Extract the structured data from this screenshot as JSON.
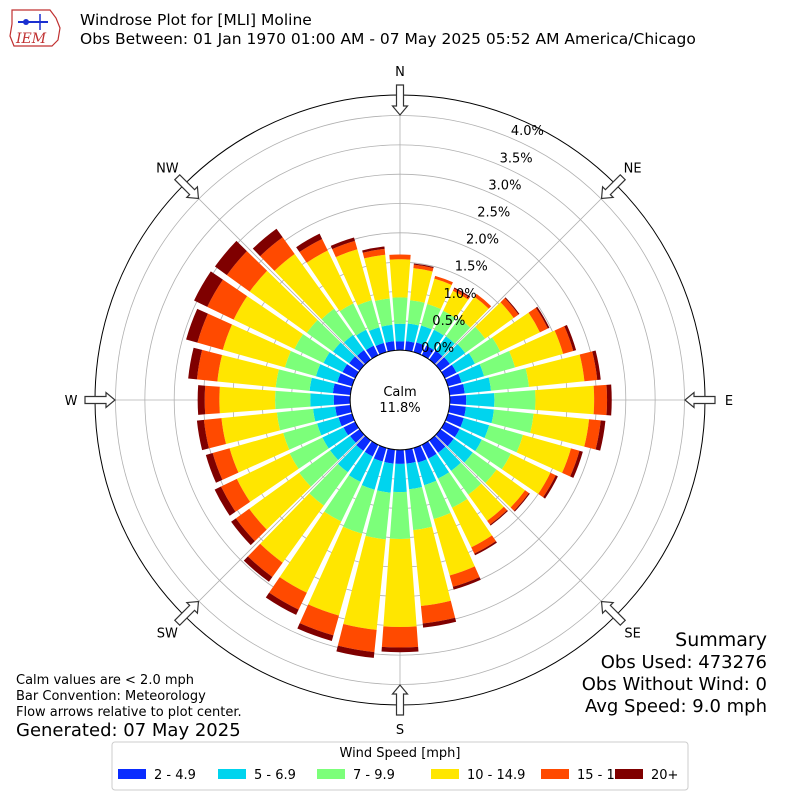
{
  "header": {
    "title": "Windrose Plot for [MLI] Moline",
    "subtitle": "Obs Between: 01 Jan 1970 01:00 AM - 07 May 2025 05:52 AM America/Chicago",
    "logo_text": "IEM"
  },
  "calm": {
    "label": "Calm",
    "value": "11.8%"
  },
  "summary": {
    "title": "Summary",
    "obs_used": "Obs Used: 473276",
    "obs_without_wind": "Obs Without Wind: 0",
    "avg_speed": "Avg Speed: 9.0 mph"
  },
  "notes": {
    "calm_note": "Calm values are < 2.0 mph",
    "bar_convention": "Bar Convention: Meteorology",
    "flow_note": "Flow arrows relative to plot center.",
    "generated": "Generated: 07 May 2025"
  },
  "chart_data": {
    "type": "windrose",
    "title": "Windrose Plot for [MLI] Moline",
    "compass_labels": [
      "N",
      "NE",
      "E",
      "SE",
      "S",
      "SW",
      "W",
      "NW"
    ],
    "radial_ticks": [
      "0.0%",
      "0.5%",
      "1.0%",
      "1.5%",
      "2.0%",
      "2.5%",
      "3.0%",
      "3.5%",
      "4.0%"
    ],
    "rmax_percent": 4.35,
    "inner_hole_percent": 0.85,
    "directions_deg": [
      0,
      10,
      20,
      30,
      40,
      50,
      60,
      70,
      80,
      90,
      100,
      110,
      120,
      130,
      140,
      150,
      160,
      170,
      180,
      190,
      200,
      210,
      220,
      230,
      240,
      250,
      260,
      270,
      280,
      290,
      300,
      310,
      320,
      330,
      340,
      350
    ],
    "legend_title": "Wind Speed [mph]",
    "colors": [
      "#0a2cff",
      "#00d4ee",
      "#7cff7a",
      "#ffe600",
      "#ff4a00",
      "#7f0000"
    ],
    "series": [
      {
        "name": "2 - 4.9",
        "color": "#0a2cff",
        "values": [
          0.15,
          0.16,
          0.17,
          0.18,
          0.19,
          0.2,
          0.22,
          0.24,
          0.26,
          0.28,
          0.28,
          0.28,
          0.28,
          0.28,
          0.26,
          0.26,
          0.26,
          0.24,
          0.24,
          0.24,
          0.24,
          0.22,
          0.22,
          0.2,
          0.22,
          0.24,
          0.26,
          0.28,
          0.3,
          0.26,
          0.24,
          0.22,
          0.2,
          0.18,
          0.16,
          0.16
        ]
      },
      {
        "name": "5 - 6.9",
        "color": "#00d4ee",
        "values": [
          0.3,
          0.3,
          0.3,
          0.3,
          0.3,
          0.32,
          0.35,
          0.4,
          0.45,
          0.48,
          0.48,
          0.45,
          0.42,
          0.4,
          0.38,
          0.38,
          0.4,
          0.44,
          0.48,
          0.5,
          0.5,
          0.48,
          0.45,
          0.42,
          0.4,
          0.38,
          0.38,
          0.4,
          0.4,
          0.38,
          0.36,
          0.34,
          0.32,
          0.3,
          0.28,
          0.28
        ]
      },
      {
        "name": "7 - 9.9",
        "color": "#7cff7a",
        "values": [
          0.45,
          0.4,
          0.38,
          0.36,
          0.38,
          0.42,
          0.48,
          0.55,
          0.65,
          0.7,
          0.68,
          0.6,
          0.55,
          0.5,
          0.5,
          0.55,
          0.6,
          0.7,
          0.8,
          0.8,
          0.78,
          0.75,
          0.7,
          0.65,
          0.62,
          0.6,
          0.62,
          0.6,
          0.58,
          0.55,
          0.55,
          0.55,
          0.55,
          0.5,
          0.48,
          0.45
        ]
      },
      {
        "name": "10 - 14.9",
        "color": "#ffe600",
        "values": [
          0.65,
          0.55,
          0.45,
          0.38,
          0.45,
          0.6,
          0.75,
          0.85,
          0.95,
          1.0,
          0.95,
          0.85,
          0.75,
          0.6,
          0.55,
          0.75,
          1.0,
          1.3,
          1.5,
          1.55,
          1.45,
          1.35,
          1.2,
          1.05,
          1.0,
          0.95,
          0.95,
          0.95,
          1.0,
          1.1,
          1.15,
          1.2,
          1.15,
          1.0,
          0.9,
          0.75
        ]
      },
      {
        "name": "15 - 19.9",
        "color": "#ff4a00",
        "values": [
          0.08,
          0.06,
          0.05,
          0.04,
          0.06,
          0.1,
          0.15,
          0.18,
          0.22,
          0.22,
          0.2,
          0.15,
          0.1,
          0.08,
          0.08,
          0.12,
          0.2,
          0.3,
          0.35,
          0.38,
          0.35,
          0.32,
          0.3,
          0.28,
          0.3,
          0.3,
          0.3,
          0.25,
          0.35,
          0.45,
          0.5,
          0.48,
          0.35,
          0.22,
          0.15,
          0.1
        ]
      },
      {
        "name": "20+",
        "color": "#7f0000",
        "values": [
          0.0,
          0.02,
          0.0,
          0.02,
          0.0,
          0.02,
          0.03,
          0.05,
          0.06,
          0.08,
          0.08,
          0.06,
          0.04,
          0.02,
          0.02,
          0.03,
          0.05,
          0.07,
          0.08,
          0.1,
          0.1,
          0.1,
          0.1,
          0.1,
          0.12,
          0.12,
          0.12,
          0.12,
          0.15,
          0.2,
          0.25,
          0.25,
          0.18,
          0.1,
          0.06,
          0.04
        ]
      }
    ]
  }
}
